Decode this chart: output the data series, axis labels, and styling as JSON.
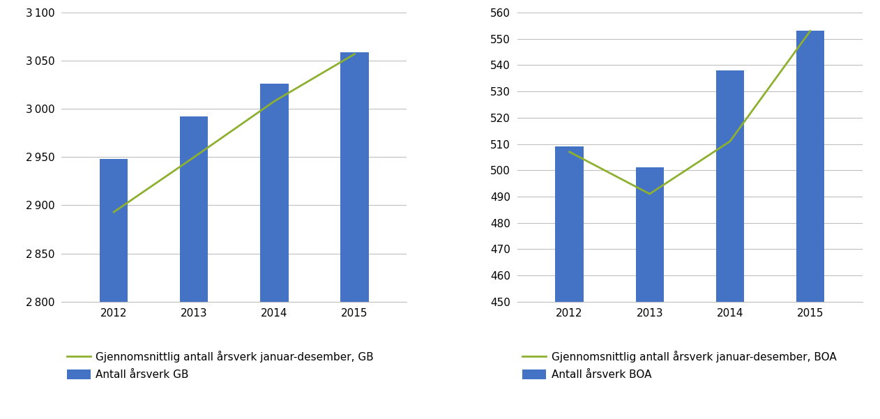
{
  "years": [
    "2012",
    "2013",
    "2014",
    "2015"
  ],
  "gb_bars": [
    2948,
    2992,
    3026,
    3059
  ],
  "gb_line": [
    2893,
    2950,
    3008,
    3057
  ],
  "boa_bars": [
    509,
    501,
    538,
    553
  ],
  "boa_line": [
    507,
    491,
    511,
    553
  ],
  "gb_ylim": [
    2800,
    3100
  ],
  "gb_yticks": [
    2800,
    2850,
    2900,
    2950,
    3000,
    3050,
    3100
  ],
  "boa_ylim": [
    450,
    560
  ],
  "boa_yticks": [
    450,
    460,
    470,
    480,
    490,
    500,
    510,
    520,
    530,
    540,
    550,
    560
  ],
  "bar_color": "#4472C4",
  "line_color": "#8DB030",
  "bar_legend_gb": "Antall årsverk GB",
  "line_legend_gb": "Gjennomsnittlig antall årsverk januar-desember, GB",
  "bar_legend_boa": "Antall årsverk BOA",
  "line_legend_boa": "Gjennomsnittlig antall årsverk januar-desember, BOA",
  "background_color": "#ffffff",
  "grid_color": "#bfbfbf",
  "tick_label_fontsize": 11,
  "legend_fontsize": 11,
  "bar_width": 0.35
}
